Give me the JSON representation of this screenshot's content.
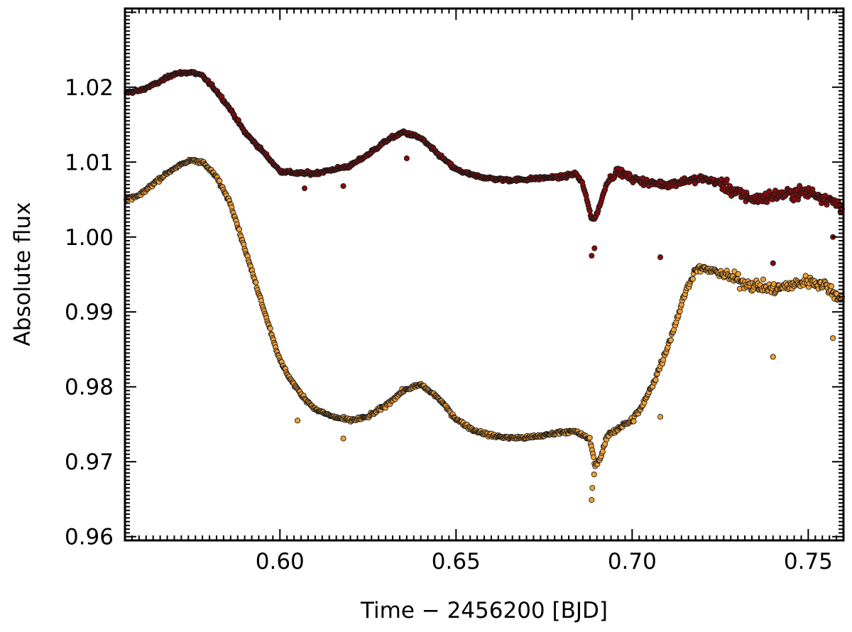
{
  "chart_data": {
    "type": "scatter",
    "xlabel": "Time − 2456200 [BJD]",
    "ylabel": "Absolute flux",
    "xlim": [
      0.556,
      0.76
    ],
    "ylim": [
      0.9595,
      1.0305
    ],
    "xticks": [
      {
        "value": 0.6,
        "label": "0.60"
      },
      {
        "value": 0.65,
        "label": "0.65"
      },
      {
        "value": 0.7,
        "label": "0.70"
      },
      {
        "value": 0.75,
        "label": "0.75"
      }
    ],
    "yticks": [
      {
        "value": 0.96,
        "label": "0.96"
      },
      {
        "value": 0.97,
        "label": "0.97"
      },
      {
        "value": 0.98,
        "label": "0.98"
      },
      {
        "value": 0.99,
        "label": "0.99"
      },
      {
        "value": 1.0,
        "label": "1.00"
      },
      {
        "value": 1.01,
        "label": "1.01"
      },
      {
        "value": 1.02,
        "label": "1.02"
      }
    ],
    "grid": false,
    "series": [
      {
        "color": "#8b0a0a",
        "x": [
          0.556,
          0.56,
          0.565,
          0.57,
          0.575,
          0.578,
          0.582,
          0.586,
          0.59,
          0.595,
          0.6,
          0.605,
          0.61,
          0.615,
          0.62,
          0.625,
          0.63,
          0.635,
          0.64,
          0.645,
          0.65,
          0.655,
          0.66,
          0.665,
          0.67,
          0.675,
          0.68,
          0.684,
          0.686,
          0.6885,
          0.6895,
          0.691,
          0.693,
          0.696,
          0.7,
          0.705,
          0.71,
          0.715,
          0.72,
          0.725,
          0.73,
          0.735,
          0.74,
          0.745,
          0.75,
          0.755,
          0.76
        ],
        "y": [
          1.0193,
          1.0195,
          1.0205,
          1.0218,
          1.022,
          1.0215,
          1.0195,
          1.017,
          1.014,
          1.0115,
          1.0088,
          1.0085,
          1.0085,
          1.009,
          1.0095,
          1.011,
          1.0128,
          1.014,
          1.0132,
          1.011,
          1.009,
          1.0082,
          1.0078,
          1.0076,
          1.0077,
          1.0079,
          1.008,
          1.0085,
          1.007,
          1.0025,
          1.0025,
          1.0045,
          1.0075,
          1.0088,
          1.0078,
          1.0072,
          1.007,
          1.0075,
          1.0078,
          1.0072,
          1.0058,
          1.005,
          1.0055,
          1.0058,
          1.006,
          1.0052,
          1.004
        ],
        "outliers": [
          [
            0.607,
            1.0065
          ],
          [
            0.618,
            1.0068
          ],
          [
            0.636,
            1.0105
          ],
          [
            0.6885,
            0.9975
          ],
          [
            0.6893,
            0.9985
          ],
          [
            0.708,
            0.9973
          ],
          [
            0.74,
            0.9965
          ],
          [
            0.757,
            1.0
          ]
        ]
      },
      {
        "color": "#f5a033",
        "x": [
          0.556,
          0.56,
          0.565,
          0.57,
          0.575,
          0.578,
          0.582,
          0.586,
          0.589,
          0.592,
          0.595,
          0.598,
          0.6,
          0.603,
          0.606,
          0.61,
          0.615,
          0.62,
          0.625,
          0.63,
          0.635,
          0.64,
          0.645,
          0.65,
          0.655,
          0.66,
          0.665,
          0.67,
          0.675,
          0.68,
          0.684,
          0.686,
          0.688,
          0.6895,
          0.691,
          0.693,
          0.696,
          0.7,
          0.703,
          0.706,
          0.709,
          0.712,
          0.715,
          0.718,
          0.72,
          0.725,
          0.73,
          0.735,
          0.74,
          0.745,
          0.75,
          0.755,
          0.76
        ],
        "y": [
          1.005,
          1.0055,
          1.0075,
          1.0092,
          1.0103,
          1.01,
          1.008,
          1.0045,
          1.0,
          0.9955,
          0.991,
          0.9865,
          0.9835,
          0.981,
          0.979,
          0.977,
          0.976,
          0.9755,
          0.976,
          0.9775,
          0.9795,
          0.9803,
          0.9785,
          0.9757,
          0.9742,
          0.9735,
          0.9732,
          0.9732,
          0.9735,
          0.974,
          0.974,
          0.9735,
          0.973,
          0.9695,
          0.9705,
          0.9735,
          0.9745,
          0.9755,
          0.9775,
          0.9805,
          0.984,
          0.988,
          0.9925,
          0.9957,
          0.9958,
          0.9952,
          0.9942,
          0.9935,
          0.993,
          0.9935,
          0.9942,
          0.9935,
          0.9915
        ],
        "outliers": [
          [
            0.605,
            0.9755
          ],
          [
            0.618,
            0.9731
          ],
          [
            0.6885,
            0.9649
          ],
          [
            0.6887,
            0.9665
          ],
          [
            0.6892,
            0.9683
          ],
          [
            0.708,
            0.976
          ],
          [
            0.74,
            0.984
          ],
          [
            0.757,
            0.9865
          ]
        ]
      }
    ]
  }
}
